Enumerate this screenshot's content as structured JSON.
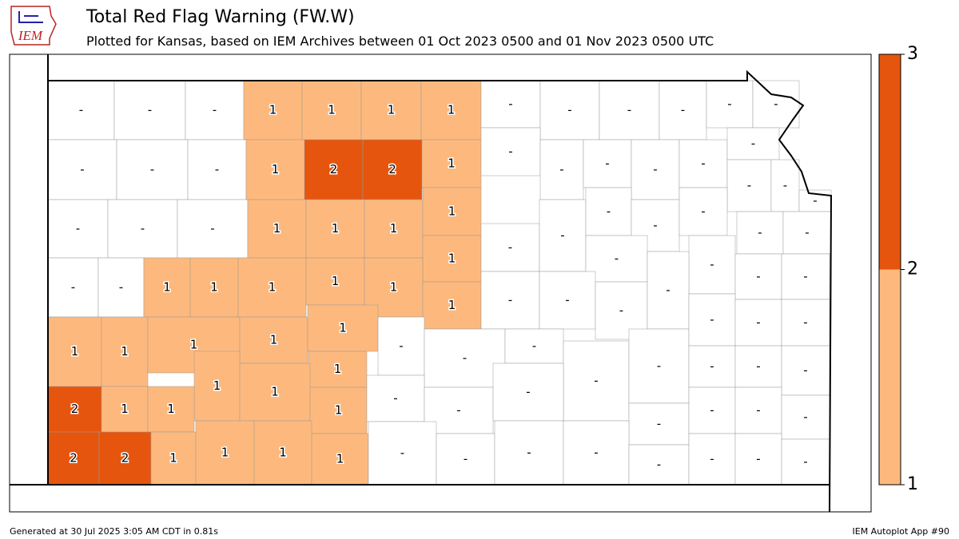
{
  "header": {
    "logo": "IEM",
    "title": "Total Red Flag Warning (FW.W)",
    "subtitle": "Plotted for Kansas, based on IEM Archives  between 01 Oct 2023 0500 and 01 Nov 2023 0500 UTC"
  },
  "chart_data": {
    "type": "choropleth",
    "values": [
      null,
      null,
      null,
      1,
      1,
      1,
      1,
      null,
      null,
      null,
      null,
      null,
      null,
      null,
      null,
      null,
      1,
      2,
      2,
      1,
      null,
      null,
      null,
      null,
      null,
      null,
      null,
      null,
      null,
      null,
      null,
      null,
      1,
      1,
      1,
      1,
      1,
      null,
      null,
      null,
      null,
      null,
      null,
      null,
      null,
      null,
      null,
      null,
      1,
      1,
      1,
      1,
      1,
      1,
      null,
      null,
      null,
      null,
      null,
      null,
      1,
      1,
      1,
      1,
      1,
      1,
      null,
      null,
      null,
      null,
      null,
      null,
      null,
      null,
      1,
      1,
      2,
      1,
      1,
      1,
      null,
      null,
      null,
      null,
      null,
      null,
      null,
      null,
      null,
      null,
      2,
      2,
      1,
      1,
      1,
      1,
      null,
      null,
      null,
      null,
      null,
      null,
      null,
      null
    ],
    "value_labels": [
      "-",
      "-",
      "-",
      "1",
      "1",
      "1",
      "1",
      "-",
      "-",
      "-",
      "-",
      "-",
      "-",
      "-",
      "-",
      "-",
      "1",
      "2",
      "2",
      "1",
      "-",
      "-",
      "-",
      "-",
      "-",
      "-",
      "-",
      "-",
      "-",
      "-",
      "-",
      "-",
      "1",
      "1",
      "1",
      "1",
      "1",
      "-",
      "-",
      "-",
      "-",
      "-",
      "-",
      "-",
      "-",
      "-",
      "-",
      "-",
      "1",
      "1",
      "1",
      "1",
      "1",
      "1",
      "-",
      "-",
      "-",
      "-",
      "-",
      "-",
      "1",
      "1",
      "1",
      "1",
      "1",
      "1",
      "-",
      "-",
      "-",
      "-",
      "-",
      "-",
      "-",
      "-",
      "1",
      "1",
      "2",
      "1",
      "1",
      "1",
      "-",
      "-",
      "-",
      "-",
      "-",
      "-",
      "-",
      "-",
      "-",
      "-",
      "2",
      "2",
      "1",
      "1",
      "1",
      "1",
      "-",
      "-",
      "-",
      "-",
      "-",
      "-",
      "-",
      "-"
    ],
    "colorbar": {
      "ticks": [
        1,
        2,
        3
      ],
      "colors": [
        "#fdb97d",
        "#e6550d"
      ]
    }
  },
  "footer": {
    "left": "Generated at 30 Jul 2025 3:05 AM CDT in 0.81s",
    "right": "IEM Autoplot App #90"
  }
}
